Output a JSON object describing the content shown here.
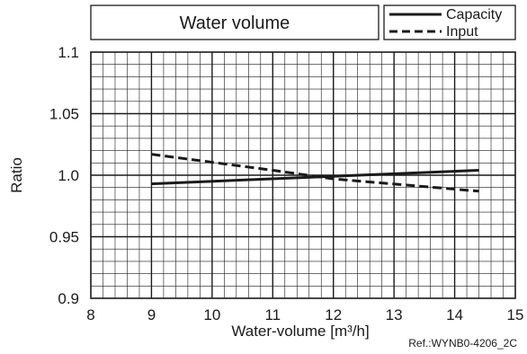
{
  "chart_data": {
    "type": "line",
    "title": "Water volume",
    "xlabel": "Water-volume [m³/h]",
    "ylabel": "Ratio",
    "xlim": [
      8,
      15
    ],
    "ylim": [
      0.9,
      1.1
    ],
    "x_ticks": [
      "8",
      "9",
      "10",
      "11",
      "12",
      "13",
      "14",
      "15"
    ],
    "y_ticks": [
      "0.9",
      "0.95",
      "1.0",
      "1.05",
      "1.1"
    ],
    "grid": true,
    "legend_position": "top-right",
    "series": [
      {
        "name": "Capacity",
        "style": "solid",
        "x": [
          9.0,
          14.4
        ],
        "y": [
          0.993,
          1.004
        ]
      },
      {
        "name": "Input",
        "style": "dashed",
        "x": [
          9.0,
          11.0,
          12.0,
          14.4
        ],
        "y": [
          1.017,
          1.004,
          0.997,
          0.987
        ]
      }
    ],
    "reference": "Ref.:WYNB0-4206_2C"
  }
}
